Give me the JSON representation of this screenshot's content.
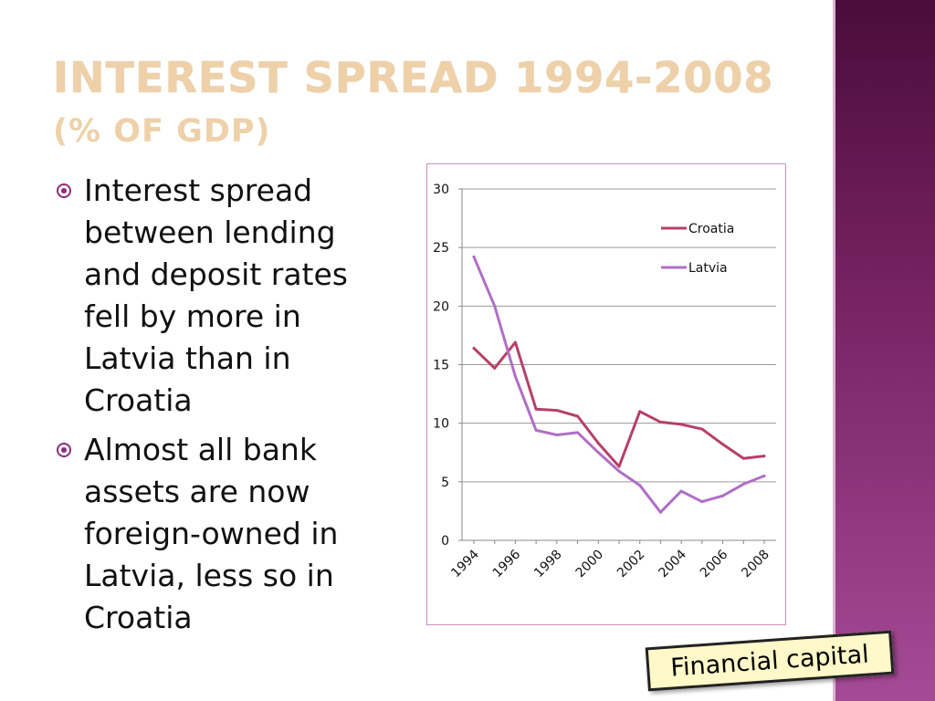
{
  "slide": {
    "title": "Interest spread 1994-2008",
    "subtitle": "(% of GDP)",
    "bullets": [
      "Interest spread between lending and deposit rates fell by more in Latvia than in Croatia",
      "Almost all bank assets are now foreign-owned in Latvia, less so in Croatia"
    ],
    "sticker": "Financial capital",
    "accent_color": "#8c2a7c",
    "title_color": "#eed1a9"
  },
  "chart_data": {
    "type": "line",
    "x": [
      1994,
      1995,
      1996,
      1997,
      1998,
      1999,
      2000,
      2001,
      2002,
      2003,
      2004,
      2005,
      2006,
      2007,
      2008
    ],
    "x_tick_labels": [
      "1994",
      "1996",
      "1998",
      "2000",
      "2002",
      "2004",
      "2006",
      "2008"
    ],
    "series": [
      {
        "name": "Croatia",
        "color": "#b5406a",
        "values": [
          16.4,
          14.7,
          16.9,
          11.2,
          11.1,
          10.6,
          8.3,
          6.3,
          11.0,
          10.1,
          9.9,
          9.5,
          8.2,
          7.0,
          7.2
        ]
      },
      {
        "name": "Latvia",
        "color": "#b06fc4",
        "values": [
          24.2,
          20.0,
          14.0,
          9.4,
          9.0,
          9.2,
          7.5,
          5.9,
          4.7,
          2.4,
          4.2,
          3.3,
          3.8,
          4.8,
          5.5
        ]
      }
    ],
    "ylim": [
      0,
      30
    ],
    "yticks": [
      0,
      5,
      10,
      15,
      20,
      25,
      30
    ],
    "grid": true,
    "legend_position": "right"
  }
}
